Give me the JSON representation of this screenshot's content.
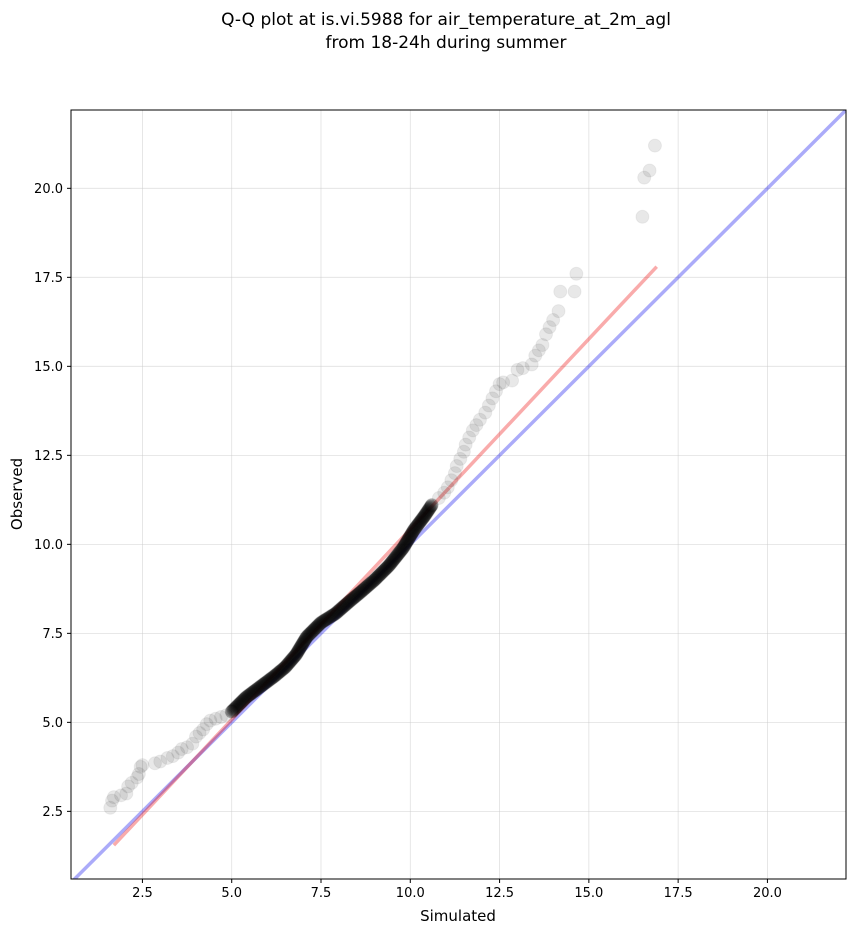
{
  "chart_data": {
    "type": "scatter",
    "title_line1": "Q-Q plot at is.vi.5988 for air_temperature_at_2m_agl",
    "title_line2": "from 18-24h during summer",
    "xlabel": "Simulated",
    "ylabel": "Observed",
    "xlim": [
      0.5,
      22.2
    ],
    "ylim": [
      0.6,
      22.2
    ],
    "grid": true,
    "xticks": [
      2.5,
      5.0,
      7.5,
      10.0,
      12.5,
      15.0,
      17.5,
      20.0
    ],
    "yticks": [
      2.5,
      5.0,
      7.5,
      10.0,
      12.5,
      15.0,
      17.5,
      20.0
    ],
    "xtick_labels": [
      "2.5",
      "5.0",
      "7.5",
      "10.0",
      "12.5",
      "15.0",
      "17.5",
      "20.0"
    ],
    "ytick_labels": [
      "2.5",
      "5.0",
      "7.5",
      "10.0",
      "12.5",
      "15.0",
      "17.5",
      "20.0"
    ],
    "colors": {
      "points": "#000000",
      "identity_line": "#0000ee",
      "fit_line": "#ee0000",
      "grid": "#cccccc"
    },
    "identity_line": {
      "x": [
        0.5,
        22.2
      ],
      "y": [
        0.5,
        22.2
      ]
    },
    "fit_line": {
      "x": [
        1.7,
        16.9
      ],
      "y": [
        1.55,
        17.8
      ]
    },
    "tail_points": [
      {
        "x": 1.6,
        "y": 2.6
      },
      {
        "x": 1.65,
        "y": 2.8
      },
      {
        "x": 1.7,
        "y": 2.9
      },
      {
        "x": 1.9,
        "y": 2.95
      },
      {
        "x": 2.05,
        "y": 3.0
      },
      {
        "x": 2.1,
        "y": 3.2
      },
      {
        "x": 2.2,
        "y": 3.3
      },
      {
        "x": 2.35,
        "y": 3.45
      },
      {
        "x": 2.4,
        "y": 3.55
      },
      {
        "x": 2.45,
        "y": 3.75
      },
      {
        "x": 2.5,
        "y": 3.8
      },
      {
        "x": 2.85,
        "y": 3.85
      },
      {
        "x": 3.0,
        "y": 3.9
      },
      {
        "x": 3.2,
        "y": 4.0
      },
      {
        "x": 3.35,
        "y": 4.05
      },
      {
        "x": 3.5,
        "y": 4.15
      },
      {
        "x": 3.6,
        "y": 4.25
      },
      {
        "x": 3.75,
        "y": 4.3
      },
      {
        "x": 3.9,
        "y": 4.4
      },
      {
        "x": 4.0,
        "y": 4.6
      },
      {
        "x": 4.1,
        "y": 4.7
      },
      {
        "x": 4.2,
        "y": 4.8
      },
      {
        "x": 4.3,
        "y": 4.95
      },
      {
        "x": 4.4,
        "y": 5.05
      },
      {
        "x": 4.55,
        "y": 5.1
      },
      {
        "x": 4.7,
        "y": 5.15
      },
      {
        "x": 4.85,
        "y": 5.2
      },
      {
        "x": 5.0,
        "y": 5.3
      },
      {
        "x": 10.6,
        "y": 11.1
      },
      {
        "x": 10.8,
        "y": 11.3
      },
      {
        "x": 10.95,
        "y": 11.45
      },
      {
        "x": 11.05,
        "y": 11.6
      },
      {
        "x": 11.15,
        "y": 11.8
      },
      {
        "x": 11.25,
        "y": 12.0
      },
      {
        "x": 11.3,
        "y": 12.2
      },
      {
        "x": 11.4,
        "y": 12.4
      },
      {
        "x": 11.5,
        "y": 12.6
      },
      {
        "x": 11.55,
        "y": 12.8
      },
      {
        "x": 11.65,
        "y": 13.0
      },
      {
        "x": 11.75,
        "y": 13.2
      },
      {
        "x": 11.85,
        "y": 13.35
      },
      {
        "x": 11.95,
        "y": 13.5
      },
      {
        "x": 12.1,
        "y": 13.7
      },
      {
        "x": 12.2,
        "y": 13.9
      },
      {
        "x": 12.3,
        "y": 14.1
      },
      {
        "x": 12.4,
        "y": 14.3
      },
      {
        "x": 12.5,
        "y": 14.5
      },
      {
        "x": 12.6,
        "y": 14.55
      },
      {
        "x": 12.85,
        "y": 14.6
      },
      {
        "x": 13.0,
        "y": 14.9
      },
      {
        "x": 13.15,
        "y": 14.95
      },
      {
        "x": 13.4,
        "y": 15.05
      },
      {
        "x": 13.5,
        "y": 15.3
      },
      {
        "x": 13.6,
        "y": 15.45
      },
      {
        "x": 13.7,
        "y": 15.6
      },
      {
        "x": 13.8,
        "y": 15.9
      },
      {
        "x": 13.9,
        "y": 16.1
      },
      {
        "x": 14.0,
        "y": 16.3
      },
      {
        "x": 14.15,
        "y": 16.55
      },
      {
        "x": 14.2,
        "y": 17.1
      },
      {
        "x": 14.6,
        "y": 17.1
      },
      {
        "x": 14.65,
        "y": 17.6
      },
      {
        "x": 16.5,
        "y": 19.2
      },
      {
        "x": 16.55,
        "y": 20.3
      },
      {
        "x": 16.7,
        "y": 20.5
      },
      {
        "x": 16.85,
        "y": 21.2
      }
    ],
    "core_path": [
      {
        "x": 5.0,
        "y": 5.3
      },
      {
        "x": 5.4,
        "y": 5.7
      },
      {
        "x": 5.8,
        "y": 6.0
      },
      {
        "x": 6.2,
        "y": 6.3
      },
      {
        "x": 6.5,
        "y": 6.55
      },
      {
        "x": 6.8,
        "y": 6.9
      },
      {
        "x": 7.1,
        "y": 7.4
      },
      {
        "x": 7.5,
        "y": 7.8
      },
      {
        "x": 7.9,
        "y": 8.05
      },
      {
        "x": 8.3,
        "y": 8.4
      },
      {
        "x": 8.6,
        "y": 8.65
      },
      {
        "x": 9.0,
        "y": 9.0
      },
      {
        "x": 9.4,
        "y": 9.4
      },
      {
        "x": 9.8,
        "y": 9.9
      },
      {
        "x": 10.1,
        "y": 10.4
      },
      {
        "x": 10.4,
        "y": 10.8
      },
      {
        "x": 10.6,
        "y": 11.1
      }
    ],
    "core_point_count": 240
  }
}
